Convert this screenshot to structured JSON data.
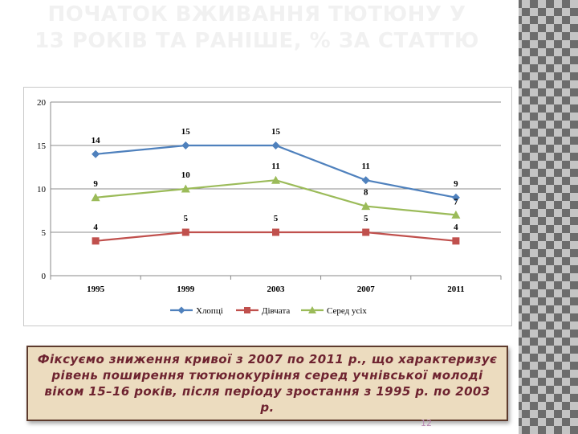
{
  "slide": {
    "title": "ПОЧАТОК ВЖИВАННЯ ТЮТЮНУ У 13 РОКІВ ТА РАНІШЕ, % ЗА СТАТТЮ",
    "caption": "Фіксуємо зниження кривої з 2007 по 2011 р., що характеризує рівень поширення тютюнокуріння серед учнівської молоді віком 15–16 років, після періоду зростання з 1995 р. по 2003 р.",
    "page_number": "12"
  },
  "chart_data": {
    "type": "line",
    "title": "",
    "xlabel": "",
    "ylabel": "",
    "categories": [
      "1995",
      "1999",
      "2003",
      "2007",
      "2011"
    ],
    "ylim": [
      0,
      20
    ],
    "yticks": [
      "0",
      "5",
      "10",
      "15",
      "20"
    ],
    "grid": true,
    "legend": "bottom",
    "series": [
      {
        "name": "Хлопці",
        "values": [
          14,
          15,
          15,
          11,
          9
        ],
        "labels": [
          "14",
          "15",
          "15",
          "11",
          "9"
        ],
        "color": "#4f81bd",
        "marker": "diamond"
      },
      {
        "name": "Дівчата",
        "values": [
          4,
          5,
          5,
          5,
          4
        ],
        "labels": [
          "4",
          "5",
          "5",
          "5",
          "4"
        ],
        "color": "#c0504d",
        "marker": "square"
      },
      {
        "name": "Серед усіх",
        "values": [
          9,
          10,
          11,
          8,
          7
        ],
        "labels": [
          "9",
          "10",
          "11",
          "8",
          "7"
        ],
        "color": "#9bbb59",
        "marker": "triangle"
      }
    ]
  }
}
